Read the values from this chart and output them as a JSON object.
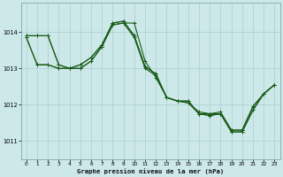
{
  "title": "Graphe pression niveau de la mer (hPa)",
  "bg_color": "#cce8e8",
  "grid_color": "#aad0d0",
  "line_color": "#1a5c1a",
  "xlim": [
    -0.5,
    23.5
  ],
  "ylim": [
    1010.5,
    1014.8
  ],
  "yticks": [
    1011,
    1012,
    1013,
    1014
  ],
  "xticks": [
    0,
    1,
    2,
    3,
    4,
    5,
    6,
    7,
    8,
    9,
    10,
    11,
    12,
    13,
    14,
    15,
    16,
    17,
    18,
    19,
    20,
    21,
    22,
    23
  ],
  "series1": [
    1013.9,
    1013.9,
    1013.9,
    1013.1,
    1013.0,
    1013.0,
    1013.2,
    1013.6,
    1014.2,
    1014.25,
    1013.85,
    1013.0,
    1012.8,
    1012.2,
    1012.1,
    1012.05,
    1011.8,
    1011.75,
    1011.8,
    1011.3,
    1011.3,
    1011.95,
    1012.3,
    1012.55
  ],
  "series2": [
    1013.9,
    1013.9,
    1013.9,
    1013.1,
    1013.0,
    1013.0,
    1013.2,
    1013.6,
    1014.2,
    1014.25,
    1014.25,
    1013.2,
    1012.75,
    1012.2,
    1012.1,
    1012.05,
    1011.75,
    1011.75,
    1011.75,
    1011.3,
    1011.3,
    1011.95,
    1012.3,
    1012.55
  ],
  "series3": [
    1013.85,
    1013.1,
    1013.1,
    1013.0,
    1013.0,
    1013.1,
    1013.3,
    1013.65,
    1014.25,
    1014.3,
    1013.9,
    1013.05,
    1012.85,
    1012.2,
    1012.1,
    1012.1,
    1011.75,
    1011.7,
    1011.75,
    1011.25,
    1011.25,
    1011.85,
    1012.3,
    1012.55
  ],
  "series4": [
    1013.85,
    1013.1,
    1013.1,
    1013.0,
    1013.0,
    1013.1,
    1013.3,
    1013.65,
    1014.25,
    1014.3,
    1013.9,
    1013.05,
    1012.85,
    1012.2,
    1012.1,
    1012.1,
    1011.75,
    1011.7,
    1011.75,
    1011.25,
    1011.25,
    1011.85,
    1012.3,
    1012.55
  ],
  "figwidth": 3.2,
  "figheight": 2.0,
  "dpi": 100
}
